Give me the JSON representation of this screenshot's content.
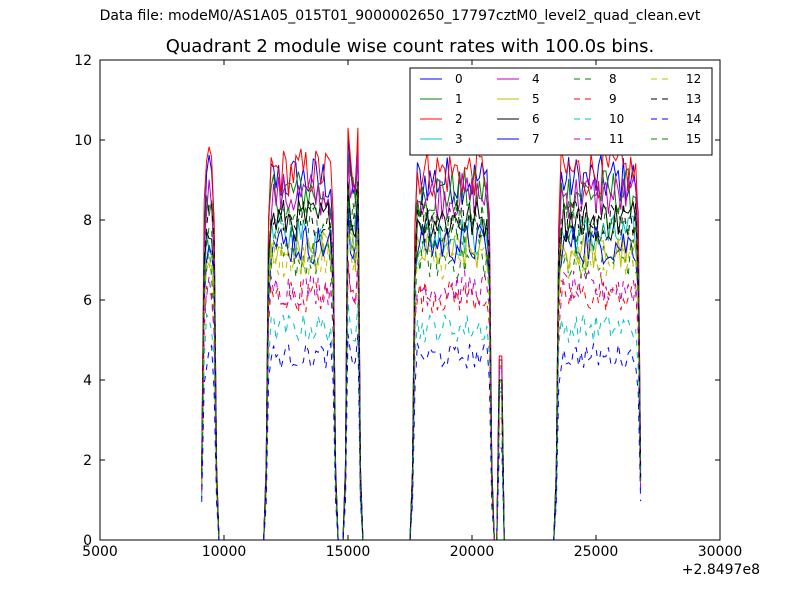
{
  "suptitle": "Data file: modeM0/AS1A05_015T01_9000002650_17797cztM0_level2_quad_clean.evt",
  "chart_data": {
    "type": "line",
    "title": "Quadrant 2 module wise count rates with 100.0s bins.",
    "xlabel": "",
    "ylabel": "",
    "x_offset_label": "+2.8497e8",
    "xlim": [
      5000,
      30000
    ],
    "ylim": [
      0,
      12
    ],
    "xticks": [
      5000,
      10000,
      15000,
      20000,
      25000,
      30000
    ],
    "xtick_labels": [
      "5000",
      "10000",
      "15000",
      "20000",
      "25000",
      "30000"
    ],
    "yticks": [
      0,
      2,
      4,
      6,
      8,
      10,
      12
    ],
    "ytick_labels": [
      "0",
      "2",
      "4",
      "6",
      "8",
      "10",
      "12"
    ],
    "grid": false,
    "legend": "top-right",
    "active_intervals": [
      [
        9100,
        9700
      ],
      [
        11700,
        14500
      ],
      [
        14900,
        15500
      ],
      [
        17600,
        20800
      ],
      [
        21100,
        21200
      ],
      [
        23400,
        26800
      ]
    ],
    "series": [
      {
        "name": "0",
        "color": "#0000ff",
        "dash": "solid",
        "level": 9.0
      },
      {
        "name": "1",
        "color": "#008000",
        "dash": "solid",
        "level": 8.7
      },
      {
        "name": "2",
        "color": "#ff0000",
        "dash": "solid",
        "level": 9.2
      },
      {
        "name": "3",
        "color": "#00bfbf",
        "dash": "solid",
        "level": 7.6
      },
      {
        "name": "4",
        "color": "#bf00bf",
        "dash": "solid",
        "level": 8.6
      },
      {
        "name": "5",
        "color": "#bfbf00",
        "dash": "solid",
        "level": 7.2
      },
      {
        "name": "6",
        "color": "#000000",
        "dash": "solid",
        "level": 8.0
      },
      {
        "name": "7",
        "color": "#0000ff",
        "dash": "solid",
        "level": 7.4
      },
      {
        "name": "8",
        "color": "#008000",
        "dash": "dashed",
        "level": 7.0
      },
      {
        "name": "9",
        "color": "#ff0000",
        "dash": "dashed",
        "level": 6.1
      },
      {
        "name": "10",
        "color": "#00bfbf",
        "dash": "dashed",
        "level": 5.3
      },
      {
        "name": "11",
        "color": "#bf00bf",
        "dash": "dashed",
        "level": 6.3
      },
      {
        "name": "12",
        "color": "#bfbf00",
        "dash": "dashed",
        "level": 7.0
      },
      {
        "name": "13",
        "color": "#000000",
        "dash": "dashed",
        "level": 8.0
      },
      {
        "name": "14",
        "color": "#0000ff",
        "dash": "dashed",
        "level": 4.6
      },
      {
        "name": "15",
        "color": "#008000",
        "dash": "dashed",
        "level": 7.9
      }
    ]
  }
}
